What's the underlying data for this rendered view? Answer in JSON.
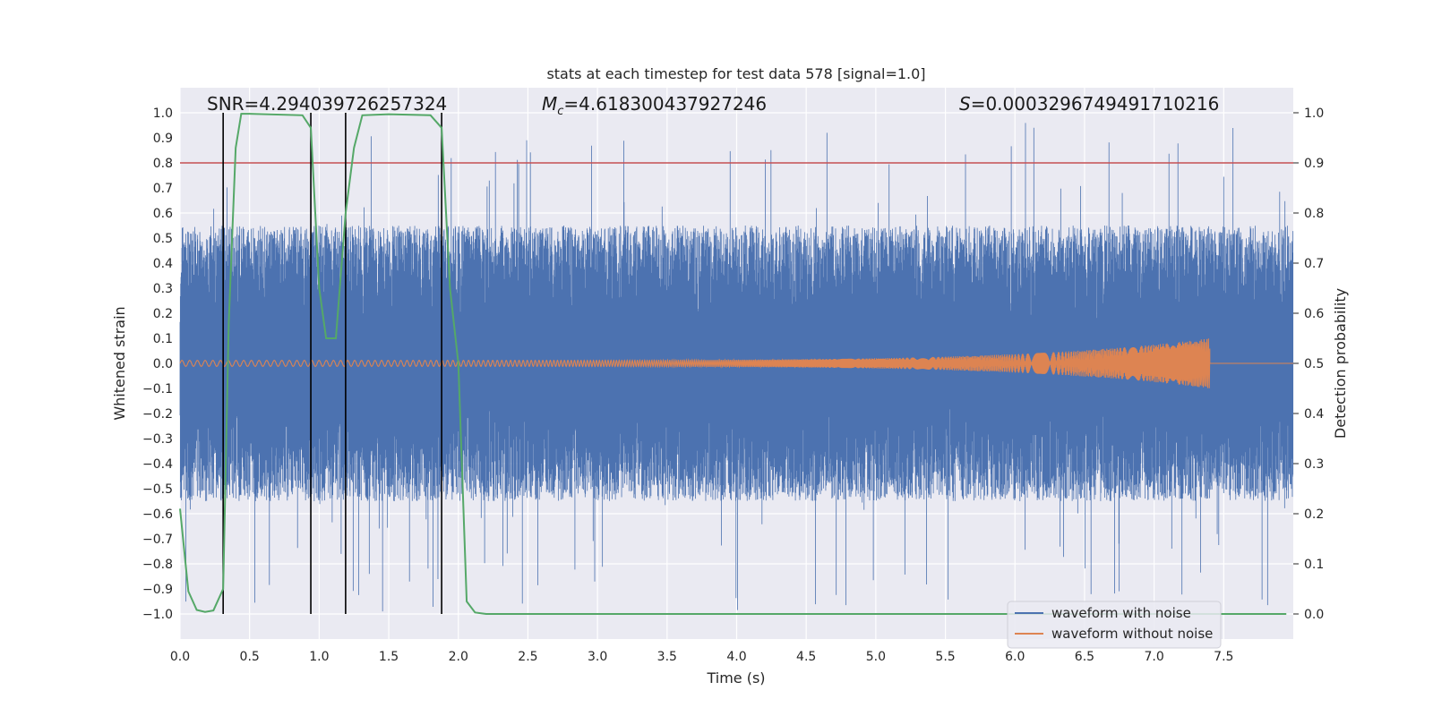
{
  "chart_data": {
    "type": "line",
    "title": "stats at each timestep for test data 578 [signal=1.0]",
    "xlabel": "Time (s)",
    "ylabel": "Whitened strain",
    "ylabel_right": "Detection probability",
    "xlim": [
      0.0,
      8.0
    ],
    "ylim": [
      -1.1,
      1.1
    ],
    "ylim_right": [
      -0.05,
      1.05
    ],
    "x_ticks": [
      0.0,
      0.5,
      1.0,
      1.5,
      2.0,
      2.5,
      3.0,
      3.5,
      4.0,
      4.5,
      5.0,
      5.5,
      6.0,
      6.5,
      7.0,
      7.5
    ],
    "x_tick_labels": [
      "0.0",
      "0.5",
      "1.0",
      "1.5",
      "2.0",
      "2.5",
      "3.0",
      "3.5",
      "4.0",
      "4.5",
      "5.0",
      "5.5",
      "6.0",
      "6.5",
      "7.0",
      "7.5"
    ],
    "y_ticks": [
      1.0,
      0.9,
      0.8,
      0.7,
      0.6,
      0.5,
      0.4,
      0.3,
      0.2,
      0.1,
      0.0,
      -0.1,
      -0.2,
      -0.3,
      -0.4,
      -0.5,
      -0.6,
      -0.7,
      -0.8,
      -0.9,
      -1.0
    ],
    "y_tick_labels": [
      "1.0",
      "0.9",
      "0.8",
      "0.7",
      "0.6",
      "0.5",
      "0.4",
      "0.3",
      "0.2",
      "0.1",
      "0.0",
      "−0.1",
      "−0.2",
      "−0.3",
      "−0.4",
      "−0.5",
      "−0.6",
      "−0.7",
      "−0.8",
      "−0.9",
      "−1.0"
    ],
    "y_right_ticks": [
      1.0,
      0.9,
      0.8,
      0.7,
      0.6,
      0.5,
      0.4,
      0.3,
      0.2,
      0.1,
      0.0
    ],
    "y_right_tick_labels": [
      "1.0",
      "0.9",
      "0.8",
      "0.7",
      "0.6",
      "0.5",
      "0.4",
      "0.3",
      "0.2",
      "0.1",
      "0.0"
    ],
    "annotations": {
      "snr": "SNR=4.294039726257324",
      "mc_symbol": "M",
      "mc_sub": "c",
      "mc_value": "=4.618300437927246",
      "s_symbol": "S",
      "s_value": "=0.0003296749491710216"
    },
    "threshold_right": 0.9,
    "vertical_lines_x": [
      0.31,
      0.94,
      1.19,
      1.88
    ],
    "series": [
      {
        "name": "waveform with noise",
        "color": "#4c72b0",
        "time_range": [
          0.0,
          8.0
        ],
        "peak_max": 0.96,
        "peak_min": -1.0,
        "typical_upper": 0.55,
        "typical_lower": -0.55
      },
      {
        "name": "waveform without noise",
        "color": "#dd8452",
        "time_range": [
          0.0,
          8.0
        ],
        "chirp_end_time": 7.4,
        "final_amplitude": 0.1
      },
      {
        "name": "Detection probability",
        "color": "#55a868",
        "axis": "right",
        "x": [
          0.0,
          0.06,
          0.12,
          0.18,
          0.24,
          0.31,
          0.35,
          0.4,
          0.44,
          0.5,
          0.88,
          0.94,
          1.0,
          1.05,
          1.12,
          1.19,
          1.25,
          1.31,
          1.5,
          1.8,
          1.88,
          1.94,
          2.0,
          2.06,
          2.12,
          2.2,
          3.0,
          4.0,
          5.0,
          6.0,
          7.0,
          7.95
        ],
        "values": [
          0.21,
          0.045,
          0.008,
          0.004,
          0.007,
          0.05,
          0.58,
          0.93,
          0.998,
          0.998,
          0.995,
          0.97,
          0.65,
          0.55,
          0.55,
          0.8,
          0.93,
          0.995,
          0.997,
          0.995,
          0.97,
          0.65,
          0.5,
          0.025,
          0.003,
          0.0,
          0.0,
          0.0,
          0.0,
          0.0,
          0.0,
          0.0
        ]
      }
    ],
    "legend_position": "lower-right",
    "colors": {
      "background": "#eaeaf2",
      "grid": "#ffffff",
      "threshold": "#c44e52",
      "vertical": "#000000"
    }
  }
}
